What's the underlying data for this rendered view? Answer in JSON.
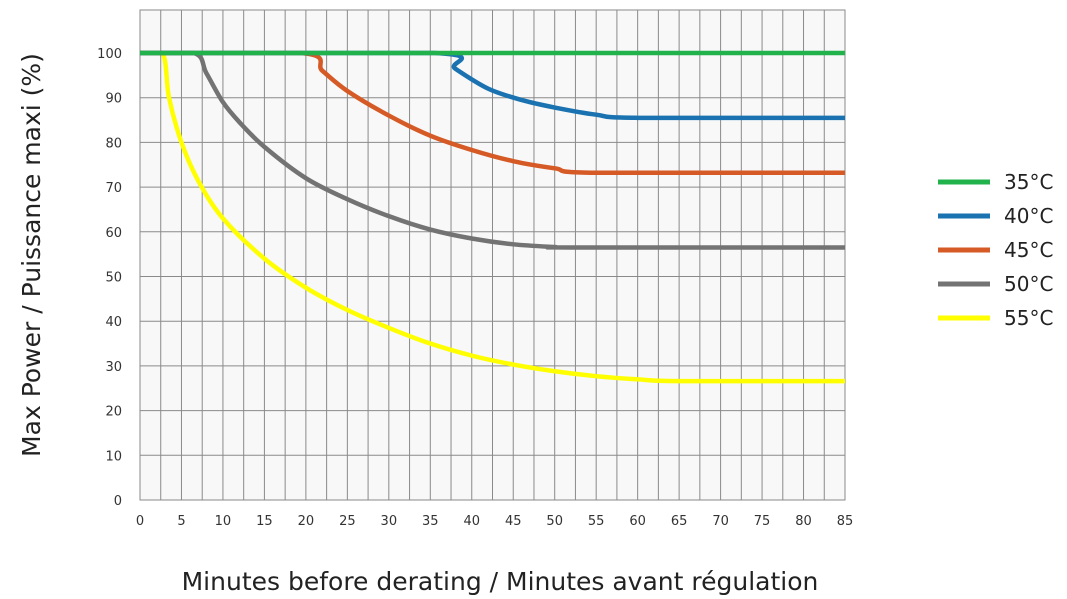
{
  "chart_data": {
    "type": "line",
    "title": "",
    "xlabel": "Minutes before derating / Minutes avant régulation",
    "ylabel": "Max Power / Puissance maxi (%)",
    "xlim": [
      0,
      85
    ],
    "ylim": [
      0,
      110
    ],
    "x_ticks": [
      "0",
      "5",
      "10",
      "15",
      "20",
      "25",
      "30",
      "35",
      "40",
      "45",
      "50",
      "55",
      "60",
      "65",
      "70",
      "75",
      "80",
      "85"
    ],
    "y_ticks": [
      "0",
      "10",
      "20",
      "30",
      "40",
      "50",
      "60",
      "70",
      "80",
      "90",
      "100"
    ],
    "grid": true,
    "legend_position": "right",
    "plot_background": "#f7f8f7",
    "series": [
      {
        "name": "35°C",
        "color": "#22b24c",
        "x": [
          0,
          85
        ],
        "y": [
          100,
          100
        ]
      },
      {
        "name": "40°C",
        "color": "#1a72b0",
        "x": [
          0,
          35.5,
          38,
          42,
          46,
          50,
          55,
          60,
          85
        ],
        "y": [
          100,
          100,
          96.5,
          92,
          89.5,
          87.8,
          86.2,
          85.5,
          85.5
        ]
      },
      {
        "name": "45°C",
        "color": "#d55a25",
        "x": [
          0,
          19.5,
          22,
          25,
          30,
          35,
          40,
          45,
          50,
          55,
          85
        ],
        "y": [
          100,
          100,
          96,
          91.5,
          86,
          81.5,
          78.3,
          75.8,
          74.2,
          73.2,
          73.2
        ]
      },
      {
        "name": "50°C",
        "color": "#737373",
        "x": [
          0,
          6.5,
          8,
          10,
          12,
          15,
          20,
          25,
          30,
          35,
          40,
          45,
          50,
          52,
          85
        ],
        "y": [
          100,
          100,
          95.5,
          89,
          84.5,
          79,
          72,
          67.3,
          63.5,
          60.5,
          58.5,
          57.2,
          56.6,
          56.5,
          56.5
        ]
      },
      {
        "name": "55°C",
        "color": "#ffff00",
        "x": [
          0,
          2.7,
          3.5,
          5,
          7,
          10,
          15,
          20,
          25,
          30,
          35,
          40,
          45,
          50,
          55,
          60,
          65,
          85
        ],
        "y": [
          100,
          100,
          90,
          80,
          71.5,
          63,
          54,
          47.5,
          42.5,
          38.5,
          35,
          32.3,
          30.3,
          28.8,
          27.7,
          27,
          26.6,
          26.6
        ]
      }
    ]
  }
}
